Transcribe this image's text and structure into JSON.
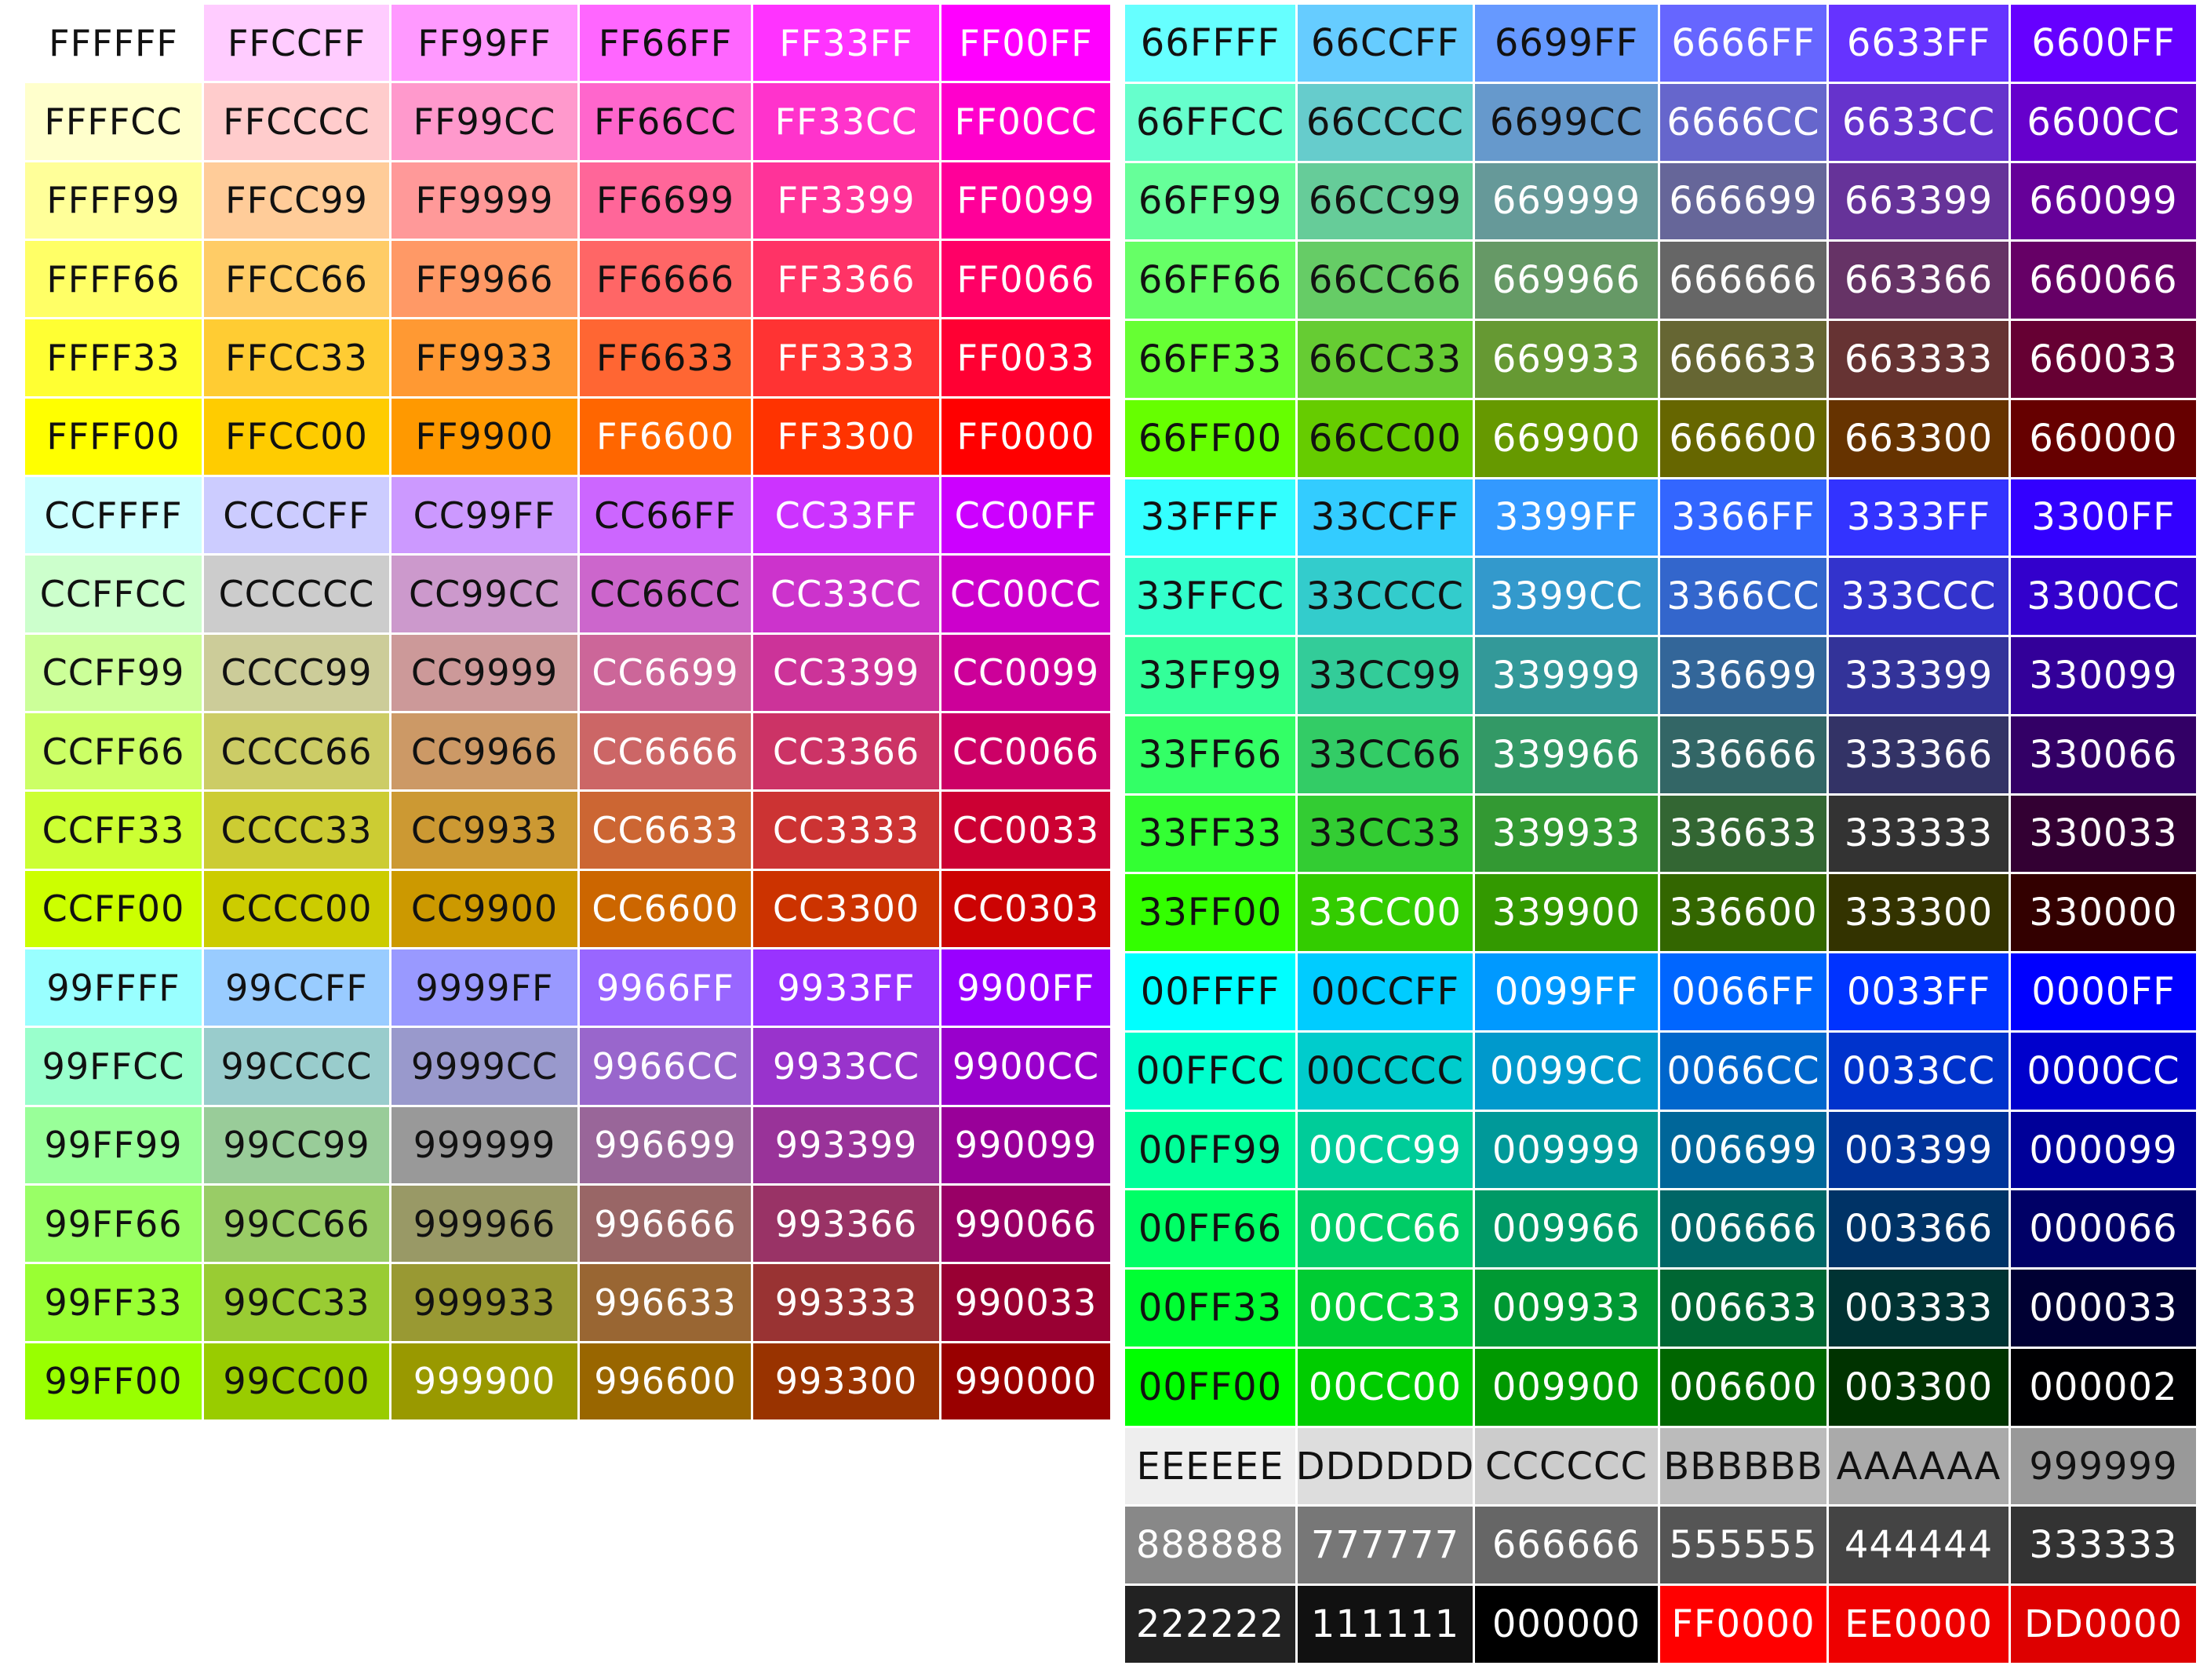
{
  "left_chart": {
    "rows": [
      [
        "FFFFFF",
        "FFCCFF",
        "FF99FF",
        "FF66FF",
        "FF33FF",
        "FF00FF"
      ],
      [
        "FFFFCC",
        "FFCCCC",
        "FF99CC",
        "FF66CC",
        "FF33CC",
        "FF00CC"
      ],
      [
        "FFFF99",
        "FFCC99",
        "FF9999",
        "FF6699",
        "FF3399",
        "FF0099"
      ],
      [
        "FFFF66",
        "FFCC66",
        "FF9966",
        "FF6666",
        "FF3366",
        "FF0066"
      ],
      [
        "FFFF33",
        "FFCC33",
        "FF9933",
        "FF6633",
        "FF3333",
        "FF0033"
      ],
      [
        "FFFF00",
        "FFCC00",
        "FF9900",
        "FF6600",
        "FF3300",
        "FF0000"
      ],
      [
        "CCFFFF",
        "CCCCFF",
        "CC99FF",
        "CC66FF",
        "CC33FF",
        "CC00FF"
      ],
      [
        "CCFFCC",
        "CCCCCC",
        "CC99CC",
        "CC66CC",
        "CC33CC",
        "CC00CC"
      ],
      [
        "CCFF99",
        "CCCC99",
        "CC9999",
        "CC6699",
        "CC3399",
        "CC0099"
      ],
      [
        "CCFF66",
        "CCCC66",
        "CC9966",
        "CC6666",
        "CC3366",
        "CC0066"
      ],
      [
        "CCFF33",
        "CCCC33",
        "CC9933",
        "CC6633",
        "CC3333",
        "CC0033"
      ],
      [
        "CCFF00",
        "CCCC00",
        "CC9900",
        "CC6600",
        "CC3300",
        "CC0303"
      ],
      [
        "99FFFF",
        "99CCFF",
        "9999FF",
        "9966FF",
        "9933FF",
        "9900FF"
      ],
      [
        "99FFCC",
        "99CCCC",
        "9999CC",
        "9966CC",
        "9933CC",
        "9900CC"
      ],
      [
        "99FF99",
        "99CC99",
        "999999",
        "996699",
        "993399",
        "990099"
      ],
      [
        "99FF66",
        "99CC66",
        "999966",
        "996666",
        "993366",
        "990066"
      ],
      [
        "99FF33",
        "99CC33",
        "999933",
        "996633",
        "993333",
        "990033"
      ],
      [
        "99FF00",
        "99CC00",
        "999900",
        "996600",
        "993300",
        "990000"
      ]
    ]
  },
  "right_chart": {
    "rows": [
      [
        "66FFFF",
        "66CCFF",
        "6699FF",
        "6666FF",
        "6633FF",
        "6600FF"
      ],
      [
        "66FFCC",
        "66CCCC",
        "6699CC",
        "6666CC",
        "6633CC",
        "6600CC"
      ],
      [
        "66FF99",
        "66CC99",
        "669999",
        "666699",
        "663399",
        "660099"
      ],
      [
        "66FF66",
        "66CC66",
        "669966",
        "666666",
        "663366",
        "660066"
      ],
      [
        "66FF33",
        "66CC33",
        "669933",
        "666633",
        "663333",
        "660033"
      ],
      [
        "66FF00",
        "66CC00",
        "669900",
        "666600",
        "663300",
        "660000"
      ],
      [
        "33FFFF",
        "33CCFF",
        "3399FF",
        "3366FF",
        "3333FF",
        "3300FF"
      ],
      [
        "33FFCC",
        "33CCCC",
        "3399CC",
        "3366CC",
        "333CCC",
        "3300CC"
      ],
      [
        "33FF99",
        "33CC99",
        "339999",
        "336699",
        "333399",
        "330099"
      ],
      [
        "33FF66",
        "33CC66",
        "339966",
        "336666",
        "333366",
        "330066"
      ],
      [
        "33FF33",
        "33CC33",
        "339933",
        "336633",
        "333333",
        "330033"
      ],
      [
        "33FF00",
        "33CC00",
        "339900",
        "336600",
        "333300",
        "330000"
      ],
      [
        "00FFFF",
        "00CCFF",
        "0099FF",
        "0066FF",
        "0033FF",
        "0000FF"
      ],
      [
        "00FFCC",
        "00CCCC",
        "0099CC",
        "0066CC",
        "0033CC",
        "0000CC"
      ],
      [
        "00FF99",
        "00CC99",
        "009999",
        "006699",
        "003399",
        "000099"
      ],
      [
        "00FF66",
        "00CC66",
        "009966",
        "006666",
        "003366",
        "000066"
      ],
      [
        "00FF33",
        "00CC33",
        "009933",
        "006633",
        "003333",
        "000033"
      ],
      [
        "00FF00",
        "00CC00",
        "009900",
        "006600",
        "003300",
        "000002"
      ],
      [
        "EEEEEE",
        "DDDDDD",
        "CCCCCC",
        "BBBBBB",
        "AAAAAA",
        "999999"
      ],
      [
        "888888",
        "777777",
        "666666",
        "555555",
        "444444",
        "333333"
      ],
      [
        "222222",
        "111111",
        "000000",
        "FF0000",
        "EE0000",
        "DD0000"
      ]
    ],
    "cell_colors_override": {
      "7.4": "3333CC"
    }
  },
  "text_colors": {
    "dark": "#111111",
    "light": "#ffffff",
    "light_threshold": 140
  }
}
